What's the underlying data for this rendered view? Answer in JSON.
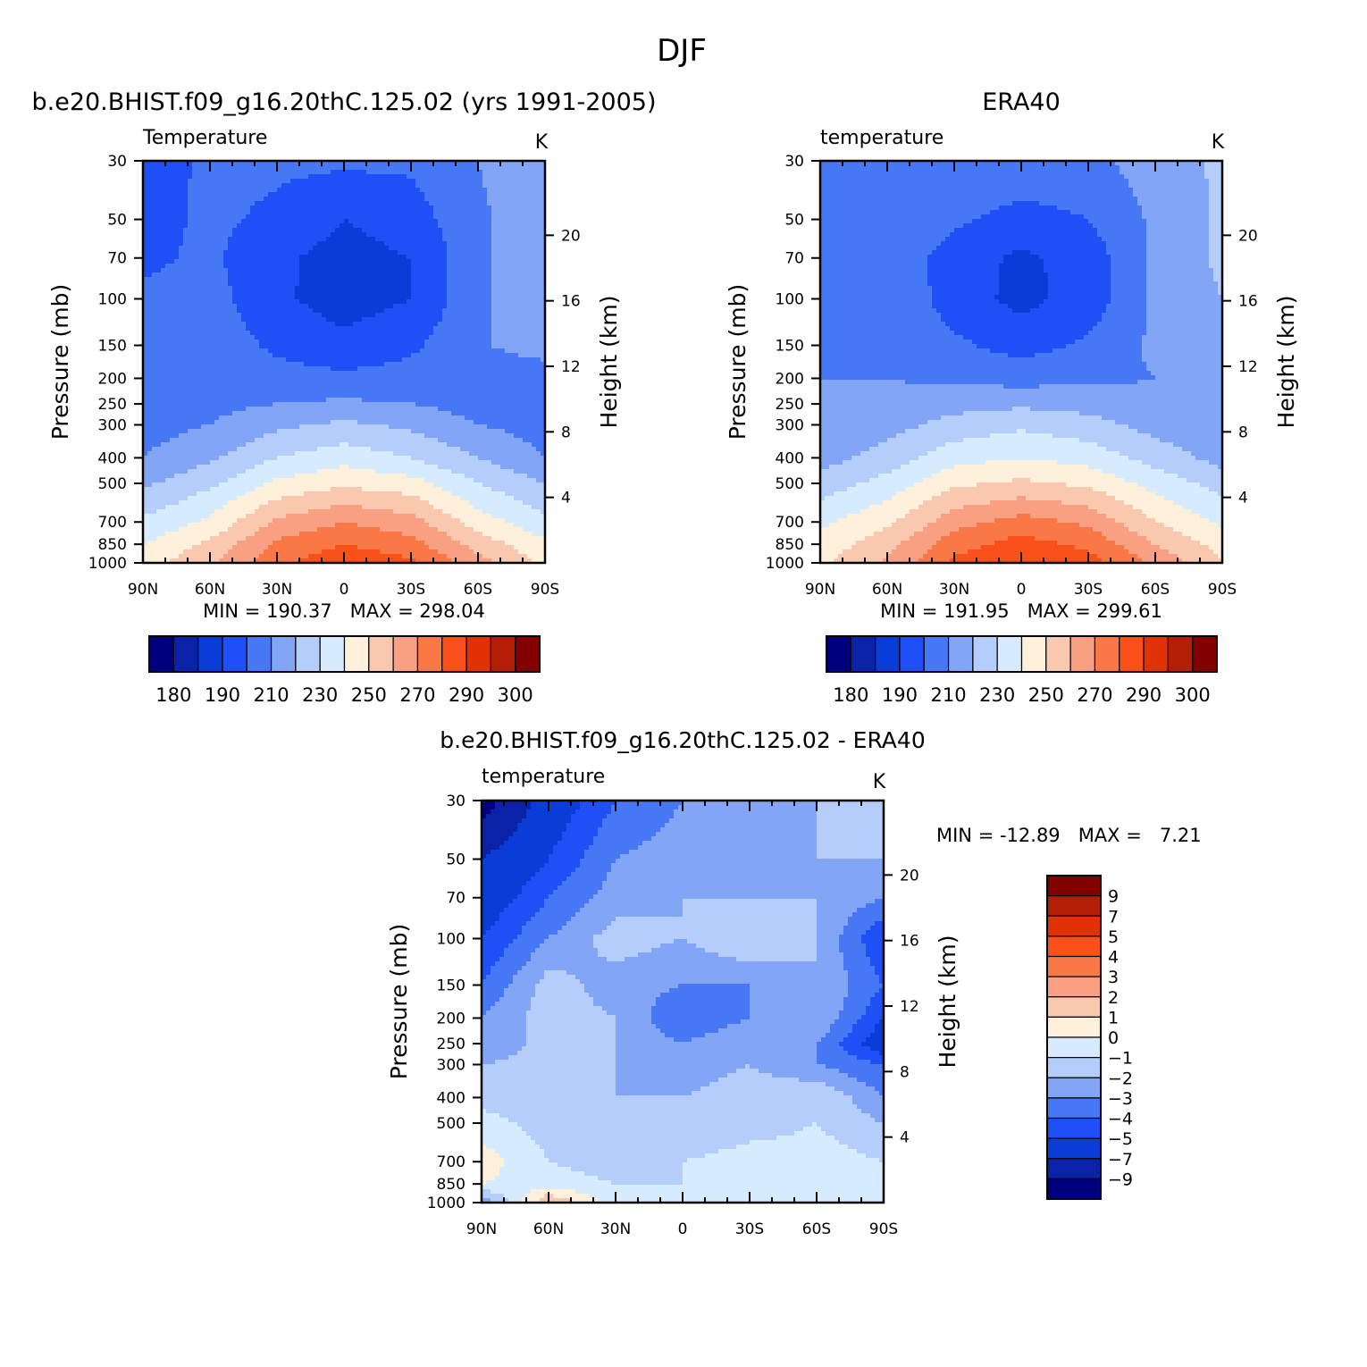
{
  "page_title": "DJF",
  "x_tick_labels": [
    "90N",
    "60N",
    "30N",
    "0",
    "30S",
    "60S",
    "90S"
  ],
  "pressure_axis_label": "Pressure (mb)",
  "pressure_ticks": [
    30,
    50,
    70,
    100,
    150,
    200,
    250,
    300,
    400,
    500,
    700,
    850,
    1000
  ],
  "height_axis_label": "Height (km)",
  "height_ticks": [
    20,
    16,
    12,
    8,
    4
  ],
  "abs_colors": [
    "#00007f",
    "#0a22a8",
    "#0a3cd7",
    "#1e50f5",
    "#4678f5",
    "#82a5f5",
    "#b4cdfa",
    "#d7ebff",
    "#fff0dc",
    "#fac8af",
    "#faa082",
    "#fa7846",
    "#fa5019",
    "#e13205",
    "#b41e05",
    "#820000"
  ],
  "abs_colorbar_labels": [
    "180",
    "190",
    "210",
    "230",
    "250",
    "270",
    "290",
    "300"
  ],
  "diff_colors": [
    "#00007f",
    "#0a22a8",
    "#0a3cd7",
    "#1e50f5",
    "#4678f5",
    "#82a5f5",
    "#b4cdfa",
    "#d7ebff",
    "#fff0dc",
    "#fac8af",
    "#faa082",
    "#fa7846",
    "#fa5019",
    "#e13205",
    "#b41e05",
    "#820000"
  ],
  "diff_colorbar_labels": [
    "9",
    "7",
    "5",
    "4",
    "3",
    "2",
    "1",
    "0",
    "-1",
    "-2",
    "-3",
    "-4",
    "-5",
    "-7",
    "-9"
  ],
  "panels": {
    "model": {
      "title": "b.e20.BHIST.f09_g16.20thC.125.02 (yrs 1991-2005)",
      "left_label": "Temperature",
      "units": "K",
      "minmax": "MIN = 190.37   MAX = 298.04"
    },
    "obs": {
      "title": "ERA40",
      "left_label": "temperature",
      "units": "K",
      "minmax": "MIN = 191.95   MAX = 299.61"
    },
    "diff": {
      "title": "b.e20.BHIST.f09_g16.20thC.125.02 - ERA40",
      "left_label": "temperature",
      "units": "K",
      "minmax": "MIN = -12.89   MAX =   7.21"
    }
  },
  "chart_data": [
    {
      "type": "heatmap",
      "title": "b.e20.BHIST.f09_g16.20thC.125.02 (yrs 1991-2005)",
      "field": "Temperature",
      "units": "K",
      "x": [
        "90N",
        "60N",
        "30N",
        "0",
        "30S",
        "60S",
        "90S"
      ],
      "y": [
        30,
        50,
        70,
        100,
        150,
        200,
        250,
        300,
        400,
        500,
        700,
        850,
        1000
      ],
      "xlabel": "",
      "ylabel": "Pressure (mb)",
      "ylabel_right": "Height (km)",
      "min": 190.37,
      "max": 298.04,
      "levels": [
        180,
        190,
        200,
        210,
        220,
        230,
        240,
        250,
        260,
        270,
        280,
        290,
        300
      ],
      "approx_values": [
        [
          205,
          212,
          212,
          212,
          212,
          220,
          228
        ],
        [
          206,
          212,
          208,
          200,
          205,
          218,
          228
        ],
        [
          208,
          212,
          202,
          196,
          200,
          218,
          228
        ],
        [
          212,
          214,
          202,
          195,
          200,
          218,
          227
        ],
        [
          214,
          216,
          208,
          203,
          208,
          219,
          224
        ],
        [
          215,
          216,
          214,
          212,
          214,
          215,
          215
        ],
        [
          215,
          217,
          220,
          222,
          220,
          216,
          215
        ],
        [
          216,
          220,
          228,
          232,
          228,
          220,
          216
        ],
        [
          220,
          228,
          240,
          246,
          240,
          230,
          220
        ],
        [
          228,
          238,
          252,
          258,
          254,
          240,
          230
        ],
        [
          242,
          252,
          272,
          280,
          274,
          255,
          243
        ],
        [
          250,
          262,
          282,
          290,
          284,
          266,
          252
        ],
        [
          256,
          268,
          288,
          297,
          292,
          274,
          258
        ]
      ]
    },
    {
      "type": "heatmap",
      "title": "ERA40",
      "field": "temperature",
      "units": "K",
      "x": [
        "90N",
        "60N",
        "30N",
        "0",
        "30S",
        "60S",
        "90S"
      ],
      "y": [
        30,
        50,
        70,
        100,
        150,
        200,
        250,
        300,
        400,
        500,
        700,
        850,
        1000
      ],
      "xlabel": "",
      "ylabel": "Pressure (mb)",
      "ylabel_right": "Height (km)",
      "min": 191.95,
      "max": 299.61,
      "levels": [
        180,
        190,
        200,
        210,
        220,
        230,
        240,
        250,
        260,
        270,
        280,
        290,
        300
      ],
      "approx_values": [
        [
          212,
          218,
          218,
          218,
          218,
          224,
          232
        ],
        [
          212,
          218,
          212,
          206,
          210,
          222,
          232
        ],
        [
          213,
          218,
          205,
          198,
          204,
          222,
          232
        ],
        [
          215,
          219,
          205,
          197,
          204,
          222,
          230
        ],
        [
          218,
          220,
          212,
          206,
          212,
          222,
          228
        ],
        [
          220,
          220,
          218,
          216,
          218,
          220,
          221
        ],
        [
          220,
          222,
          226,
          228,
          226,
          222,
          221
        ],
        [
          221,
          226,
          234,
          238,
          234,
          226,
          222
        ],
        [
          226,
          234,
          246,
          250,
          246,
          236,
          226
        ],
        [
          234,
          244,
          258,
          262,
          258,
          246,
          236
        ],
        [
          248,
          258,
          276,
          284,
          278,
          260,
          248
        ],
        [
          254,
          266,
          286,
          294,
          288,
          270,
          256
        ],
        [
          258,
          272,
          292,
          299,
          294,
          278,
          260
        ]
      ]
    },
    {
      "type": "heatmap",
      "title": "b.e20.BHIST.f09_g16.20thC.125.02 - ERA40",
      "field": "temperature",
      "units": "K",
      "x": [
        "90N",
        "60N",
        "30N",
        "0",
        "30S",
        "60S",
        "90S"
      ],
      "y": [
        30,
        50,
        70,
        100,
        150,
        200,
        250,
        300,
        400,
        500,
        700,
        850,
        1000
      ],
      "xlabel": "",
      "ylabel": "Pressure (mb)",
      "ylabel_right": "Height (km)",
      "min": -12.89,
      "max": 7.21,
      "levels": [
        -9,
        -7,
        -5,
        -4,
        -3,
        -2,
        -1,
        0,
        1,
        2,
        3,
        4,
        5,
        7,
        9
      ],
      "approx_values": [
        [
          -10,
          -6,
          -4,
          -3,
          -3,
          -2,
          -2
        ],
        [
          -7,
          -5,
          -3,
          -2.5,
          -3,
          -2,
          -2
        ],
        [
          -6,
          -4,
          -2.5,
          -2,
          -2,
          -2,
          -3
        ],
        [
          -5,
          -3,
          -1.5,
          -2,
          -1,
          -2,
          -5
        ],
        [
          -4,
          -1.5,
          -2.5,
          -3,
          -3,
          -2,
          -4
        ],
        [
          -3,
          -1.5,
          -2,
          -4,
          -3,
          -2,
          -5
        ],
        [
          -3,
          -1.5,
          -2,
          -3,
          -2,
          -3,
          -6
        ],
        [
          -2,
          -1.5,
          -2,
          -2.5,
          -2,
          -3,
          -4
        ],
        [
          -1.5,
          -1.5,
          -2,
          -2,
          -1.5,
          -1,
          -3
        ],
        [
          -0.5,
          -1.5,
          -2,
          -2,
          -1.5,
          -1,
          -2
        ],
        [
          0.5,
          -1,
          -1.5,
          -1,
          -0.5,
          -0.5,
          -1
        ],
        [
          0,
          -0.5,
          -1,
          -1,
          -0.5,
          -0.5,
          -1
        ],
        [
          -3,
          2,
          -0.5,
          -1,
          -0.5,
          -0.5,
          -0.5
        ]
      ]
    }
  ]
}
